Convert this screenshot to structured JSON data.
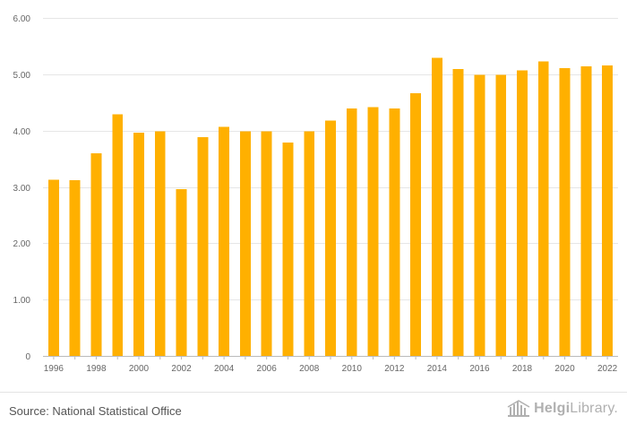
{
  "chart_data": {
    "type": "bar",
    "categories": [
      "1996",
      "1997",
      "1998",
      "1999",
      "2000",
      "2001",
      "2002",
      "2003",
      "2004",
      "2005",
      "2006",
      "2007",
      "2008",
      "2009",
      "2010",
      "2011",
      "2012",
      "2013",
      "2014",
      "2015",
      "2016",
      "2017",
      "2018",
      "2019",
      "2020",
      "2021",
      "2022"
    ],
    "values": [
      3.13,
      3.12,
      3.6,
      4.29,
      3.96,
      3.99,
      2.96,
      3.88,
      4.07,
      3.99,
      3.99,
      3.79,
      3.99,
      4.18,
      4.39,
      4.42,
      4.39,
      4.66,
      5.29,
      5.09,
      4.99,
      4.99,
      5.07,
      5.23,
      5.11,
      5.14,
      5.16
    ],
    "x_tick_labels": [
      "1996",
      "1998",
      "2000",
      "2002",
      "2004",
      "2006",
      "2008",
      "2010",
      "2012",
      "2014",
      "2016",
      "2018",
      "2020",
      "2022"
    ],
    "y_ticks": [
      0,
      1,
      2,
      3,
      4,
      5,
      6
    ],
    "y_tick_labels": [
      "0",
      "1.00",
      "2.00",
      "3.00",
      "4.00",
      "5.00",
      "6.00"
    ],
    "ylim": [
      0,
      6
    ],
    "grid": true,
    "legend": "none",
    "title": "",
    "xlabel": "",
    "ylabel": ""
  },
  "colors": {
    "bar": "#FFB000",
    "grid": "#e6e6e6"
  },
  "footer": {
    "source": "Source: National Statistical Office",
    "logo_text_bold": "Helgi",
    "logo_text": "Library.",
    "logo_icon": "building-icon"
  }
}
